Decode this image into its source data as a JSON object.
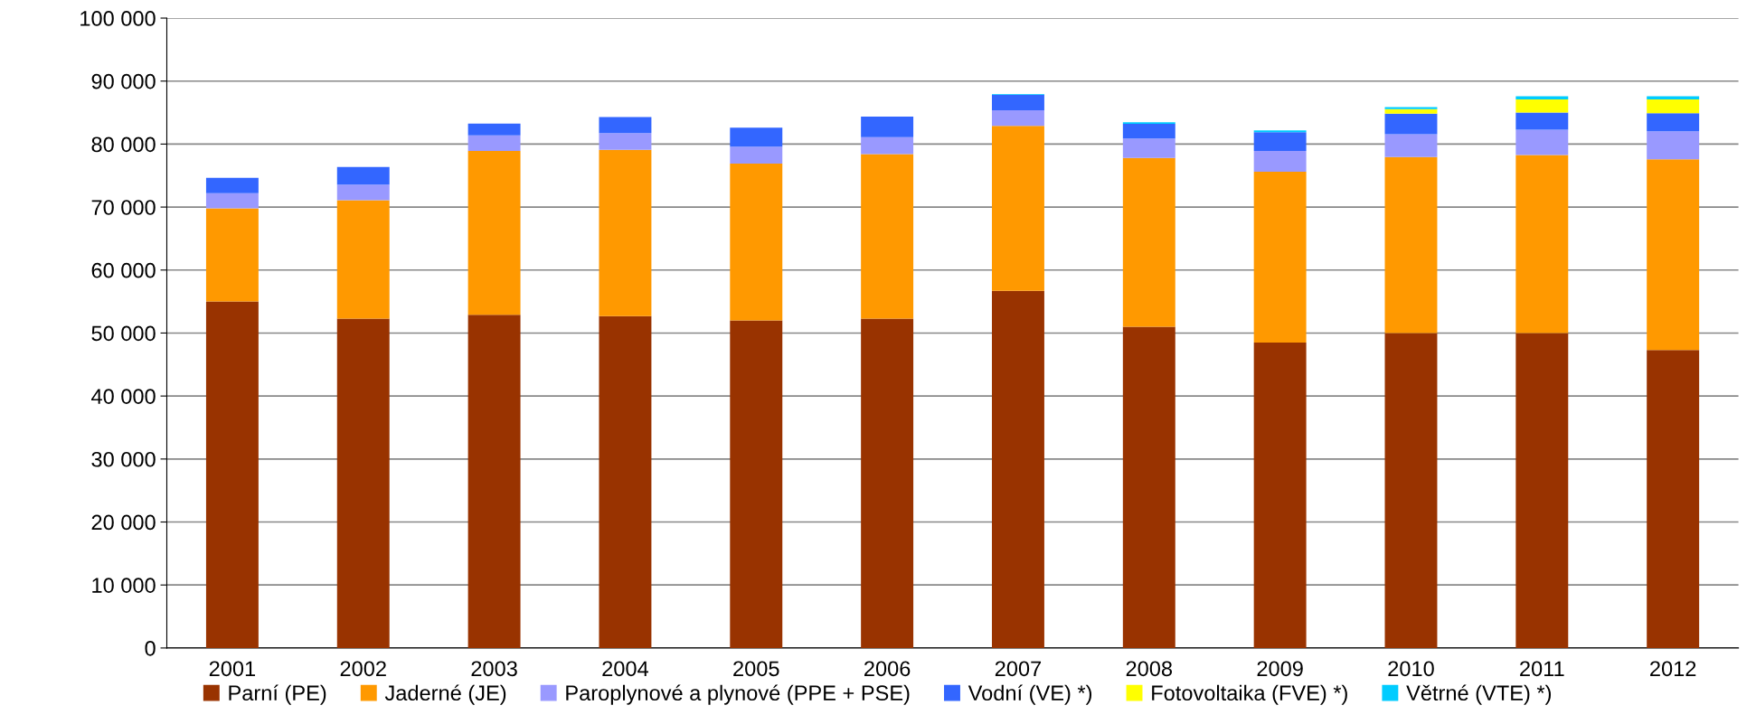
{
  "chart_data": {
    "type": "bar",
    "stacked": true,
    "categories": [
      "2001",
      "2002",
      "2003",
      "2004",
      "2005",
      "2006",
      "2007",
      "2008",
      "2009",
      "2010",
      "2011",
      "2012"
    ],
    "series": [
      {
        "name": "Parní (PE)",
        "color": "#993300",
        "values": [
          55000,
          52300,
          52900,
          52700,
          52000,
          52300,
          56700,
          51000,
          48500,
          50000,
          50000,
          47300
        ]
      },
      {
        "name": "Jaderné (JE)",
        "color": "#ff9900",
        "values": [
          14800,
          18800,
          26000,
          26400,
          24900,
          26100,
          26200,
          26800,
          27100,
          27950,
          28270,
          30280
        ]
      },
      {
        "name": "Paroplynové a plynové (PPE + PSE)",
        "color": "#9999ff",
        "values": [
          2400,
          2450,
          2500,
          2650,
          2700,
          2700,
          2450,
          3100,
          3300,
          3600,
          4000,
          4450
        ]
      },
      {
        "name": "Vodní (VE) *)",
        "color": "#3366ff",
        "values": [
          2450,
          2800,
          1850,
          2550,
          3000,
          3250,
          2500,
          2300,
          3000,
          3280,
          2740,
          2870
        ]
      },
      {
        "name": "Fotovoltaika (FVE) *)",
        "color": "#ffff00",
        "values": [
          0,
          0,
          0,
          0,
          0,
          0,
          0,
          0,
          0,
          700,
          2090,
          2190
        ]
      },
      {
        "name": "Větrné (VTE) *)",
        "color": "#00ccff",
        "values": [
          0,
          0,
          0,
          0,
          0,
          0,
          100,
          250,
          270,
          330,
          490,
          490
        ]
      }
    ],
    "ylim": [
      0,
      100000
    ],
    "yticks": [
      0,
      {
        "value": 10000,
        "label": "10 000"
      },
      {
        "value": 20000,
        "label": "20 000"
      },
      {
        "value": 30000,
        "label": "30 000"
      },
      {
        "value": 40000,
        "label": "40 000"
      },
      {
        "value": 50000,
        "label": "50 000"
      },
      {
        "value": 60000,
        "label": "60 000"
      },
      {
        "value": 70000,
        "label": "70 000"
      },
      {
        "value": 80000,
        "label": "80 000"
      },
      {
        "value": 90000,
        "label": "90 000"
      },
      {
        "value": 100000,
        "label": "100 000"
      }
    ],
    "grid": "y",
    "legend": "bottom"
  }
}
